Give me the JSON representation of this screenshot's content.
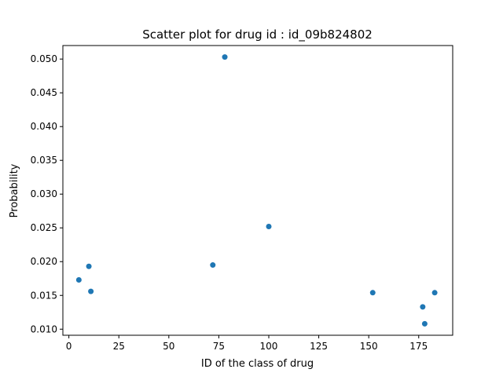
{
  "chart_data": {
    "type": "scatter",
    "title": "Scatter plot for drug id : id_09b824802",
    "xlabel": "ID of the class of drug",
    "ylabel": "Probability",
    "xlim": [
      -3,
      192
    ],
    "ylim": [
      0.0091,
      0.052
    ],
    "x_ticks": [
      0,
      25,
      50,
      75,
      100,
      125,
      150,
      175
    ],
    "x_tick_labels": [
      "0",
      "25",
      "50",
      "75",
      "100",
      "125",
      "150",
      "175"
    ],
    "y_ticks": [
      0.01,
      0.015,
      0.02,
      0.025,
      0.03,
      0.035,
      0.04,
      0.045,
      0.05
    ],
    "y_tick_labels": [
      "0.010",
      "0.015",
      "0.020",
      "0.025",
      "0.030",
      "0.035",
      "0.040",
      "0.045",
      "0.050"
    ],
    "grid": false,
    "marker_color": "#1f77b4",
    "points": [
      {
        "x": 5,
        "y": 0.0173
      },
      {
        "x": 10,
        "y": 0.0193
      },
      {
        "x": 11,
        "y": 0.0156
      },
      {
        "x": 72,
        "y": 0.0195
      },
      {
        "x": 78,
        "y": 0.0503
      },
      {
        "x": 100,
        "y": 0.0252
      },
      {
        "x": 152,
        "y": 0.0154
      },
      {
        "x": 177,
        "y": 0.0133
      },
      {
        "x": 178,
        "y": 0.0108
      },
      {
        "x": 183,
        "y": 0.0154
      }
    ]
  }
}
